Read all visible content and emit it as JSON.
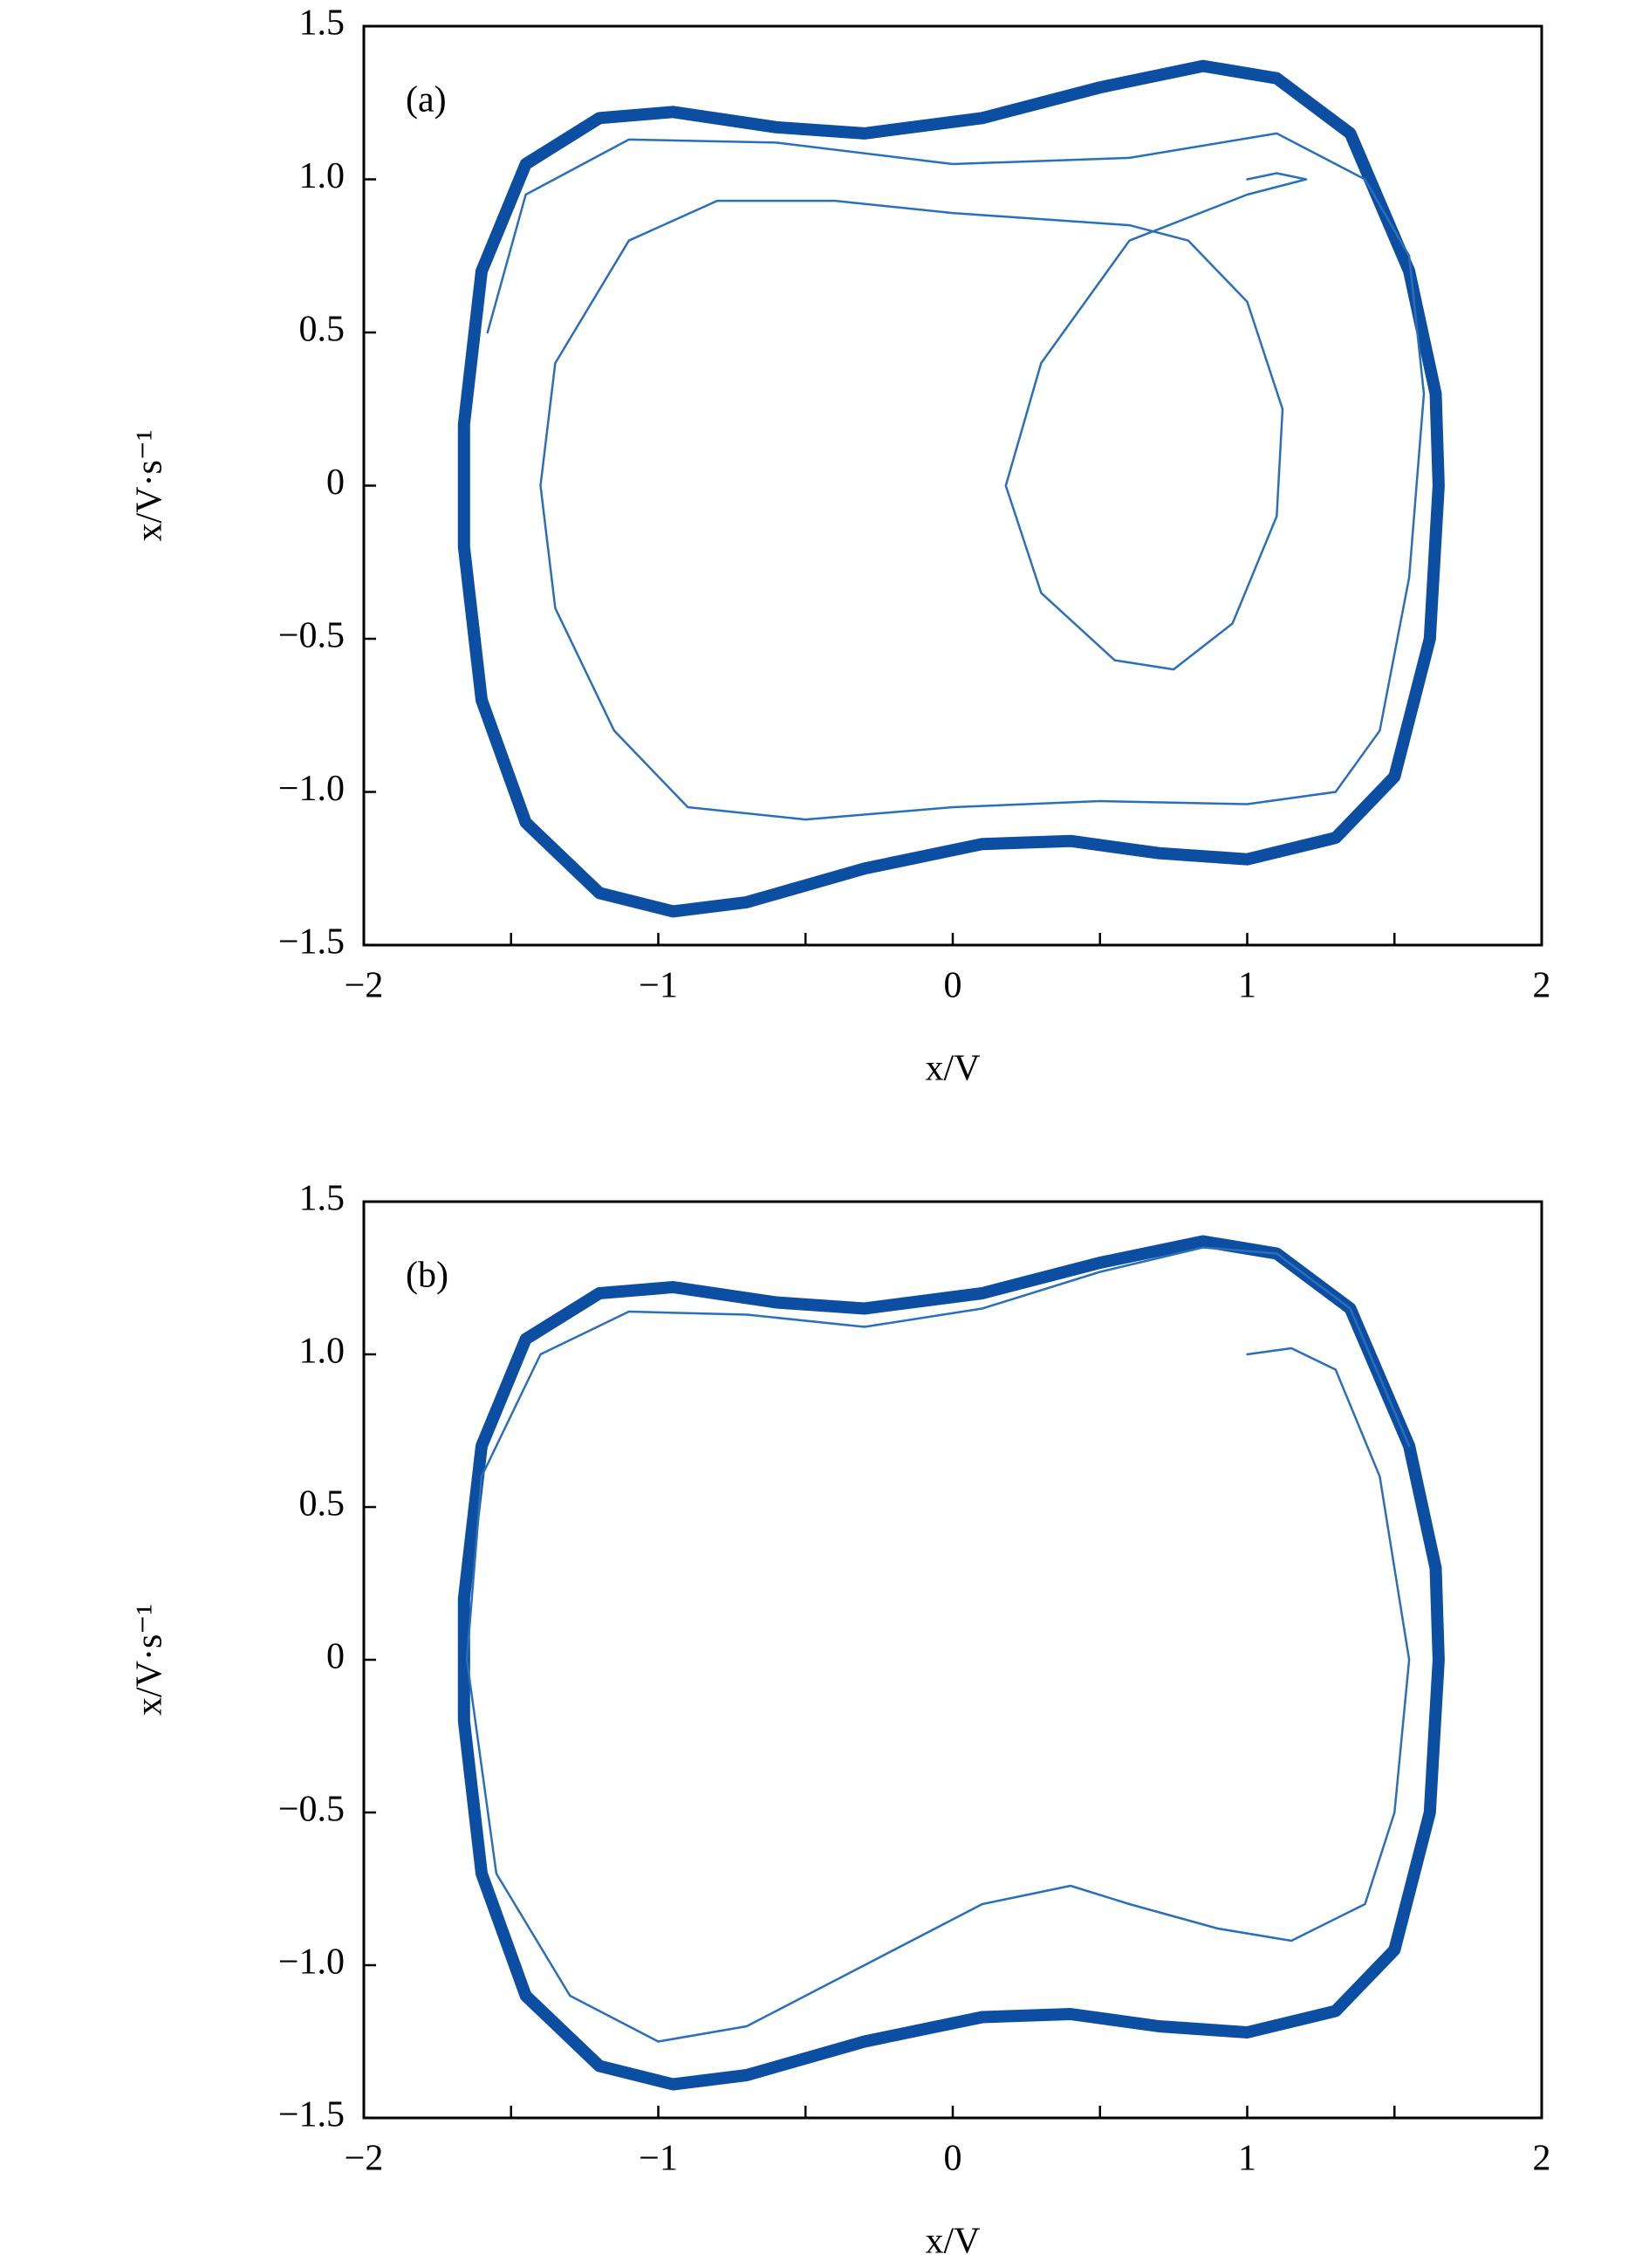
{
  "chart_data": [
    {
      "type": "line",
      "label": "(a)",
      "xlabel": "x/V",
      "ylabel": "x/V·s⁻¹",
      "xlim": [
        -2,
        2
      ],
      "ylim": [
        -1.5,
        1.5
      ],
      "xticks": [
        {
          "value": -2,
          "label": "−2"
        },
        {
          "value": -1,
          "label": "−1"
        },
        0,
        1,
        2
      ],
      "xminorticks": [
        -1.5,
        -0.5,
        0.5,
        1.5
      ],
      "yticks": [
        {
          "value": -1.5,
          "label": "−1.5"
        },
        {
          "value": -1.0,
          "label": "−1.0"
        },
        {
          "value": -0.5,
          "label": "−0.5"
        },
        0,
        0.5,
        {
          "value": 1.0,
          "label": "1.0"
        },
        1.5
      ],
      "series": [
        {
          "color": "#0b4ea2",
          "x": [
            1.65,
            1.62,
            1.5,
            1.3,
            1.0,
            0.7,
            0.4,
            0.1,
            -0.3,
            -0.7,
            -0.95,
            -1.2,
            -1.45,
            -1.6,
            -1.66,
            -1.66,
            -1.6,
            -1.45,
            -1.2,
            -0.95,
            -0.6,
            -0.3,
            0.1,
            0.5,
            0.85,
            1.1,
            1.35,
            1.55,
            1.64,
            1.65
          ],
          "y": [
            0,
            -0.5,
            -0.95,
            -1.15,
            -1.22,
            -1.2,
            -1.16,
            -1.17,
            -1.25,
            -1.36,
            -1.39,
            -1.33,
            -1.1,
            -0.7,
            -0.2,
            0.2,
            0.7,
            1.05,
            1.2,
            1.22,
            1.17,
            1.15,
            1.2,
            1.3,
            1.37,
            1.33,
            1.15,
            0.7,
            0.3,
            0
          ]
        },
        {
          "color": "#2b6fba",
          "x": [
            1.0,
            1.1,
            1.2,
            1.0,
            0.6,
            0.3,
            0.18,
            0.3,
            0.55,
            0.75,
            0.95,
            1.1,
            1.12,
            1.0,
            0.8,
            0.6,
            0.3,
            0.0,
            -0.4,
            -0.8,
            -1.1,
            -1.35,
            -1.4,
            -1.35,
            -1.15,
            -0.9,
            -0.5,
            0.0,
            0.5,
            1.0,
            1.3,
            1.45,
            1.55,
            1.6,
            1.55,
            1.4,
            1.1,
            0.6,
            0.0,
            -0.6,
            -1.1,
            -1.45,
            -1.58
          ],
          "y": [
            1.0,
            1.02,
            1.0,
            0.95,
            0.8,
            0.4,
            0.0,
            -0.35,
            -0.57,
            -0.6,
            -0.45,
            -0.1,
            0.25,
            0.6,
            0.8,
            0.85,
            0.87,
            0.89,
            0.93,
            0.93,
            0.8,
            0.4,
            0.0,
            -0.4,
            -0.8,
            -1.05,
            -1.09,
            -1.05,
            -1.03,
            -1.04,
            -1.0,
            -0.8,
            -0.3,
            0.3,
            0.75,
            1.0,
            1.15,
            1.07,
            1.05,
            1.12,
            1.13,
            0.95,
            0.5
          ]
        }
      ]
    },
    {
      "type": "line",
      "label": "(b)",
      "xlabel": "x/V",
      "ylabel": "x/V·s⁻¹",
      "xlim": [
        -2,
        2
      ],
      "ylim": [
        -1.5,
        1.5
      ],
      "xticks": [
        {
          "value": -2,
          "label": "−2"
        },
        {
          "value": -1,
          "label": "−1"
        },
        0,
        1,
        2
      ],
      "xminorticks": [
        -1.5,
        -0.5,
        0.5,
        1.5
      ],
      "yticks": [
        {
          "value": -1.5,
          "label": "−1.5"
        },
        {
          "value": -1.0,
          "label": "−1.0"
        },
        {
          "value": -0.5,
          "label": "−0.5"
        },
        0,
        0.5,
        {
          "value": 1.0,
          "label": "1.0"
        },
        1.5
      ],
      "series": [
        {
          "color": "#0b4ea2",
          "x": [
            1.65,
            1.62,
            1.5,
            1.3,
            1.0,
            0.7,
            0.4,
            0.1,
            -0.3,
            -0.7,
            -0.95,
            -1.2,
            -1.45,
            -1.6,
            -1.66,
            -1.66,
            -1.6,
            -1.45,
            -1.2,
            -0.95,
            -0.6,
            -0.3,
            0.1,
            0.5,
            0.85,
            1.1,
            1.35,
            1.55,
            1.64,
            1.65
          ],
          "y": [
            0,
            -0.5,
            -0.95,
            -1.15,
            -1.22,
            -1.2,
            -1.16,
            -1.17,
            -1.25,
            -1.36,
            -1.39,
            -1.33,
            -1.1,
            -0.7,
            -0.2,
            0.2,
            0.7,
            1.05,
            1.2,
            1.22,
            1.17,
            1.15,
            1.2,
            1.3,
            1.37,
            1.33,
            1.15,
            0.7,
            0.3,
            0
          ]
        },
        {
          "color": "#2b6fba",
          "x": [
            1.0,
            1.15,
            1.3,
            1.45,
            1.55,
            1.5,
            1.4,
            1.15,
            0.9,
            0.6,
            0.4,
            0.1,
            -0.3,
            -0.7,
            -1.0,
            -1.3,
            -1.55,
            -1.65,
            -1.6,
            -1.4,
            -1.1,
            -0.7,
            -0.3,
            0.1,
            0.5,
            0.85,
            1.1,
            1.35,
            1.55
          ],
          "y": [
            1.0,
            1.02,
            0.95,
            0.6,
            0.0,
            -0.5,
            -0.8,
            -0.92,
            -0.88,
            -0.8,
            -0.74,
            -0.8,
            -1.0,
            -1.2,
            -1.25,
            -1.1,
            -0.7,
            0.0,
            0.6,
            1.0,
            1.14,
            1.13,
            1.09,
            1.15,
            1.27,
            1.35,
            1.33,
            1.15,
            0.7
          ]
        }
      ]
    }
  ]
}
